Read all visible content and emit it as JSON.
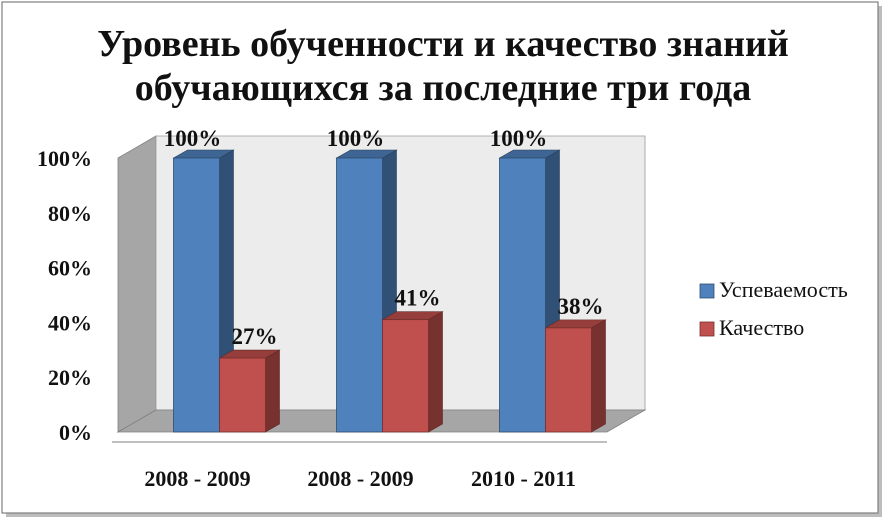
{
  "chart_data": {
    "type": "bar",
    "title_lines": [
      "Уровень обученности и качество знаний",
      "обучающихся за последние три года"
    ],
    "categories": [
      "2008 - 2009",
      "2008 - 2009",
      "2010 - 2011"
    ],
    "series": [
      {
        "name": "Успеваемость",
        "values": [
          100,
          100,
          100
        ],
        "labels": [
          "100%",
          "100%",
          "100%"
        ],
        "color": "#4f81bd"
      },
      {
        "name": "Качество",
        "values": [
          27,
          41,
          38
        ],
        "labels": [
          "27%",
          "41%",
          "38%"
        ],
        "color": "#c0504d"
      }
    ],
    "y_ticks": [
      "0%",
      "20%",
      "40%",
      "60%",
      "80%",
      "100%"
    ],
    "ylim": [
      0,
      100
    ],
    "legend_position": "right",
    "grid": false,
    "style": "3d-clustered-column"
  }
}
